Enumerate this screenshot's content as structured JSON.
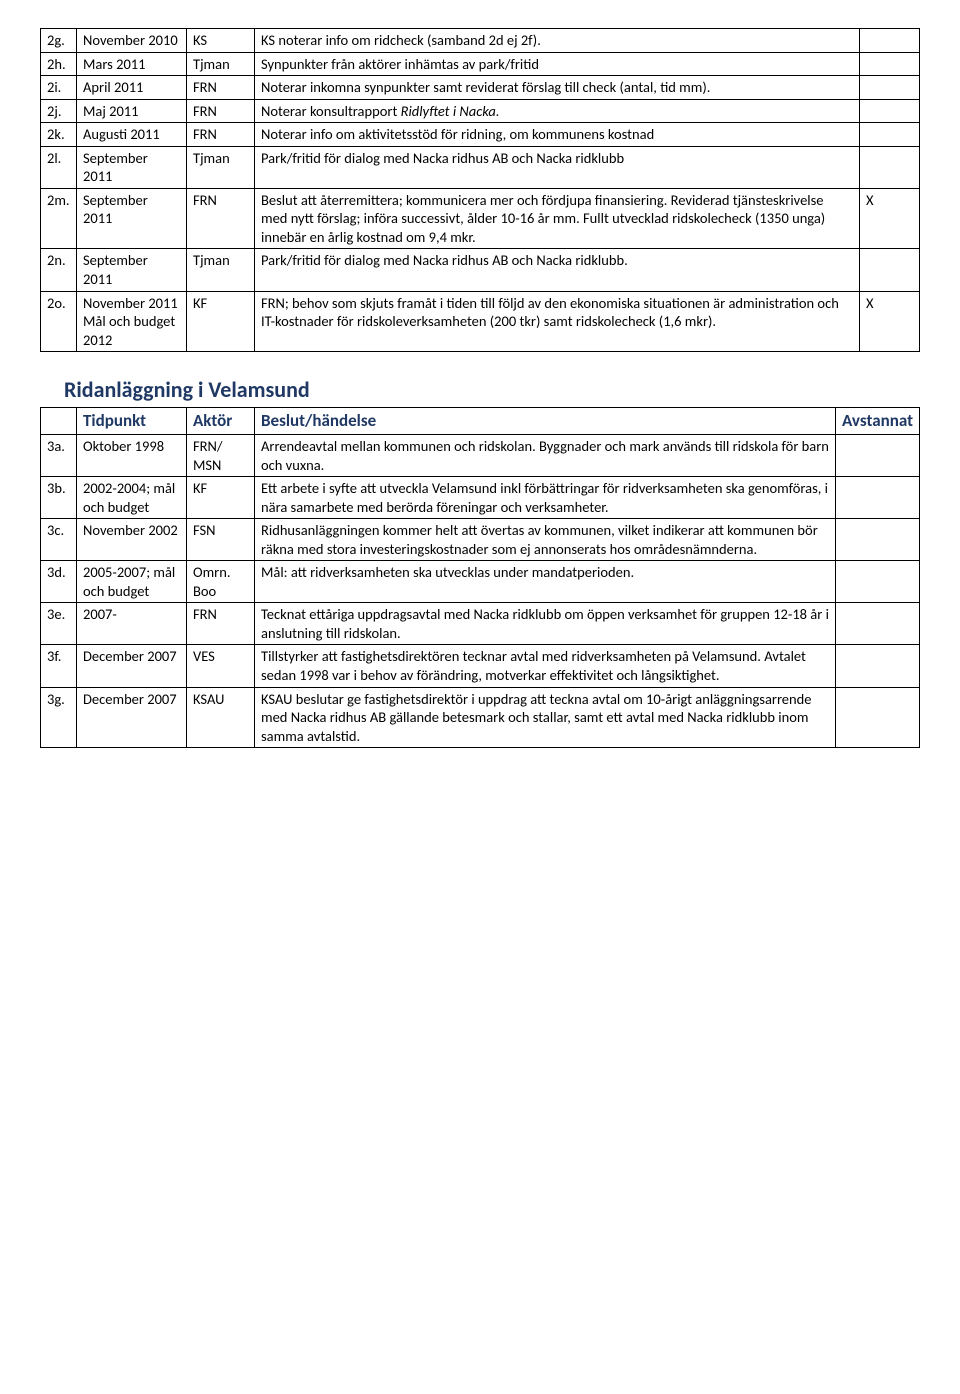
{
  "table1": {
    "rows": [
      {
        "id": "2g.",
        "time": "November 2010",
        "actor": "KS",
        "desc": "KS noterar info om ridcheck (samband 2d ej 2f).",
        "flag": ""
      },
      {
        "id": "2h.",
        "time": "Mars 2011",
        "actor": "Tjman",
        "desc": "Synpunkter från aktörer inhämtas av park/fritid",
        "flag": ""
      },
      {
        "id": "2i.",
        "time": "April 2011",
        "actor": "FRN",
        "desc": "Noterar inkomna synpunkter samt reviderat förslag till check (antal, tid mm).",
        "flag": ""
      },
      {
        "id": "2j.",
        "time": "Maj 2011",
        "actor": "FRN",
        "desc_pre": "Noterar konsultrapport ",
        "desc_italic": "Ridlyftet i Nacka.",
        "flag": ""
      },
      {
        "id": "2k.",
        "time": "Augusti 2011",
        "actor": "FRN",
        "desc": "Noterar info om aktivitetsstöd för ridning, om kommunens kostnad",
        "flag": ""
      },
      {
        "id": "2l.",
        "time": "September 2011",
        "actor": "Tjman",
        "desc": "Park/fritid för dialog med Nacka ridhus AB och Nacka ridklubb",
        "flag": ""
      },
      {
        "id": "2m.",
        "time": "September 2011",
        "actor": "FRN",
        "desc": "Beslut att återremittera; kommunicera mer och fördjupa finansiering. Reviderad tjänsteskrivelse med nytt förslag; införa successivt, ålder 10-16 år mm. Fullt utvecklad ridskolecheck (1350 unga) innebär en årlig kostnad om 9,4 mkr.",
        "flag": "X"
      },
      {
        "id": "2n.",
        "time": "September 2011",
        "actor": "Tjman",
        "desc": "Park/fritid för dialog med Nacka ridhus AB och Nacka ridklubb.",
        "flag": ""
      },
      {
        "id": "2o.",
        "time": "November 2011 Mål och budget 2012",
        "actor": "KF",
        "desc": "FRN; behov som skjuts framåt i tiden till följd av den ekonomiska situationen är administration och IT-kostnader för ridskoleverksamheten (200 tkr) samt ridskolecheck (1,6 mkr).",
        "flag": "X"
      }
    ]
  },
  "section2": {
    "title": "Ridanläggning i Velamsund",
    "headers": {
      "time": "Tidpunkt",
      "actor": "Aktör",
      "desc": "Beslut/händelse",
      "flag": "Avstannat"
    },
    "rows": [
      {
        "id": "3a.",
        "time": "Oktober 1998",
        "actor": "FRN/ MSN",
        "desc": "Arrendeavtal mellan kommunen och ridskolan. Byggnader och mark används till ridskola för barn och vuxna.",
        "flag": ""
      },
      {
        "id": "3b.",
        "time": "2002-2004; mål och budget",
        "actor": "KF",
        "desc": "Ett arbete i syfte att utveckla Velamsund inkl förbättringar för ridverksamheten ska genomföras, i nära samarbete med berörda föreningar och verksamheter.",
        "flag": ""
      },
      {
        "id": "3c.",
        "time": "November 2002",
        "actor": "FSN",
        "desc": "Ridhusanläggningen kommer helt att övertas av kommunen, vilket indikerar att kommunen bör räkna med stora investeringskostnader som ej annonserats hos områdesnämnderna.",
        "flag": ""
      },
      {
        "id": "3d.",
        "time": "2005-2007; mål och budget",
        "actor": "Omrn. Boo",
        "desc": "Mål: att ridverksamheten ska utvecklas under mandatperioden.",
        "flag": ""
      },
      {
        "id": "3e.",
        "time": "2007-",
        "actor": "FRN",
        "desc": "Tecknat ettåriga uppdragsavtal med Nacka ridklubb om öppen verksamhet för gruppen 12-18 år i anslutning till ridskolan.",
        "flag": ""
      },
      {
        "id": "3f.",
        "time": "December 2007",
        "actor": "VES",
        "desc": "Tillstyrker att fastighetsdirektören tecknar avtal med ridverksamheten på Velamsund. Avtalet sedan 1998 var i behov av förändring, motverkar effektivitet och långsiktighet.",
        "flag": ""
      },
      {
        "id": "3g.",
        "time": "December 2007",
        "actor": "KSAU",
        "desc": "KSAU beslutar ge fastighetsdirektör i uppdrag att teckna avtal om 10-årigt anläggningsarrende med Nacka ridhus AB gällande betesmark och stallar, samt ett avtal med Nacka ridklubb inom samma avtalstid.",
        "flag": ""
      }
    ]
  }
}
